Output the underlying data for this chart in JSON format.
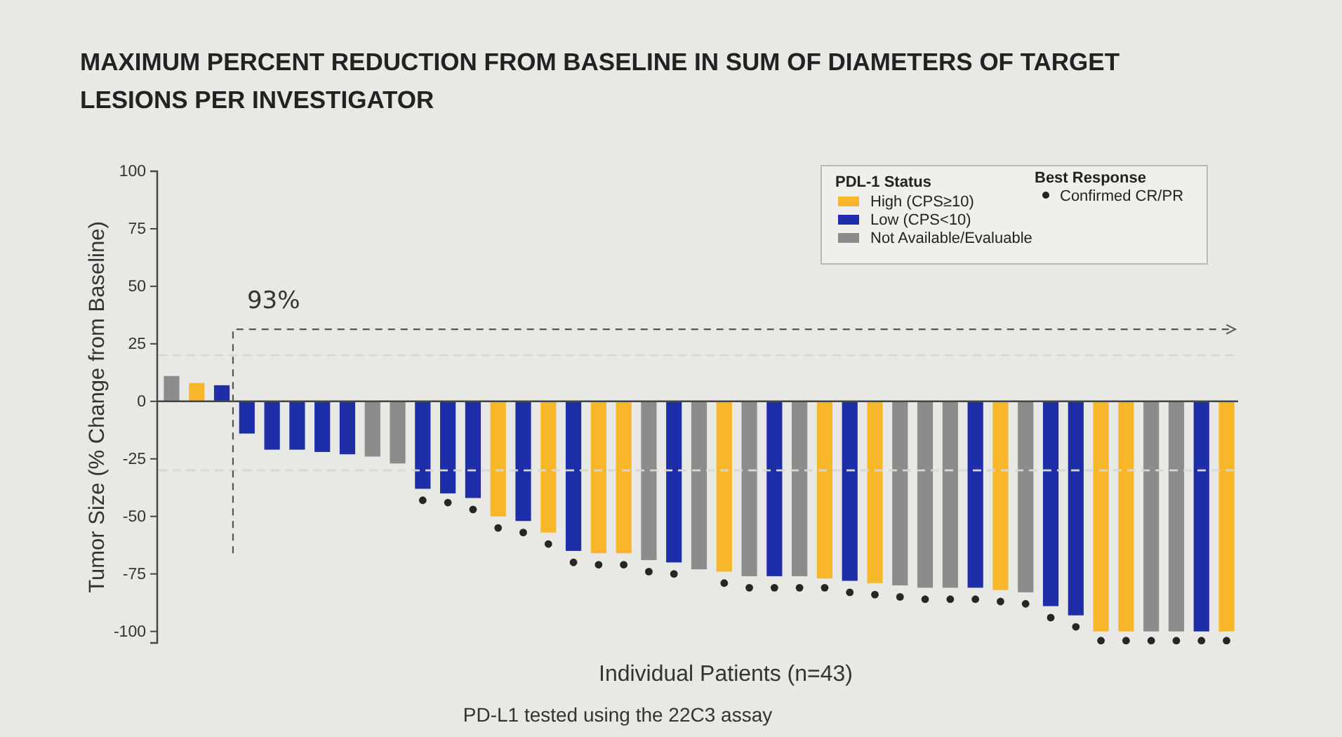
{
  "chart_data": {
    "type": "bar",
    "title": "MAXIMUM PERCENT REDUCTION FROM BASELINE IN SUM OF DIAMETERS OF TARGET LESIONS PER INVESTIGATOR",
    "xlabel": "Individual Patients (n=43)",
    "ylabel": "Tumor Size (% Change from Baseline)",
    "legend_title": "PDL-1 Status",
    "annotations": [
      "93%",
      "Best Response",
      "PD-L1 tested using the 22C3 assay"
    ],
    "categories": [
      null,
      null,
      null,
      null,
      null,
      null,
      null,
      null,
      null,
      null,
      null,
      null,
      null,
      null,
      null,
      null,
      null,
      null,
      null,
      null,
      null,
      null,
      null,
      null,
      null,
      null,
      null,
      null,
      null,
      null,
      null,
      null,
      null,
      null,
      null,
      null,
      null,
      null,
      null,
      null,
      null,
      null,
      null
    ],
    "stacked": true,
    "series": [
      {
        "name": "High (CPS≥10)",
        "color": "#f8b62a",
        "values": [
          null,
          8,
          null,
          null,
          null,
          null,
          null,
          null,
          null,
          null,
          null,
          null,
          null,
          -50,
          null,
          -57,
          null,
          -66,
          -66,
          null,
          null,
          null,
          -74,
          null,
          null,
          null,
          -77,
          null,
          -79,
          null,
          null,
          null,
          null,
          -82,
          null,
          null,
          null,
          -100,
          -100,
          null,
          null,
          null,
          -100
        ]
      },
      {
        "name": "Low (CPS<10)",
        "color": "#1d2ea8",
        "values": [
          null,
          null,
          7,
          -14,
          -21,
          -21,
          -22,
          -23,
          null,
          null,
          -38,
          -40,
          -42,
          null,
          -52,
          null,
          -65,
          null,
          null,
          null,
          -70,
          null,
          null,
          null,
          -76,
          null,
          null,
          -78,
          null,
          null,
          null,
          null,
          -81,
          null,
          null,
          -89,
          -93,
          null,
          null,
          null,
          null,
          -100,
          null
        ]
      },
      {
        "name": "Not Available/Evaluable",
        "color": "#8c8c8c",
        "values": [
          11,
          null,
          null,
          null,
          null,
          null,
          null,
          null,
          -24,
          -27,
          null,
          null,
          null,
          null,
          null,
          null,
          null,
          null,
          null,
          -69,
          null,
          -73,
          null,
          -76,
          null,
          -76,
          null,
          null,
          null,
          -80,
          -81,
          -81,
          null,
          null,
          -83,
          null,
          null,
          null,
          null,
          -100,
          -100,
          null,
          null
        ]
      },
      {
        "name": "Confirmed CR/PR",
        "type": "scatter",
        "marker": "circle",
        "color": "#262626",
        "values": [
          null,
          null,
          null,
          null,
          null,
          null,
          null,
          null,
          null,
          null,
          -43,
          -44,
          -47,
          -55,
          -57,
          -62,
          -70,
          -71,
          -71,
          -74,
          -75,
          null,
          -79,
          -81,
          -81,
          -81,
          -81,
          -83,
          -84,
          -85,
          -86,
          -86,
          -86,
          -87,
          -88,
          -94,
          -98,
          -104,
          -104,
          -104,
          -104,
          -104,
          -104
        ]
      }
    ],
    "ylim": [
      -105,
      100
    ],
    "yticks": [
      100,
      75,
      50,
      25,
      0,
      -25,
      -50,
      -75,
      -100
    ],
    "legend": "top right",
    "ref_lines": [
      {
        "axis": "y",
        "value": 20,
        "color": "#d6d6d2",
        "line_style": "dashed"
      },
      {
        "axis": "y",
        "value": -30,
        "color": "#d6d6d2",
        "line_style": "dashed"
      }
    ]
  }
}
